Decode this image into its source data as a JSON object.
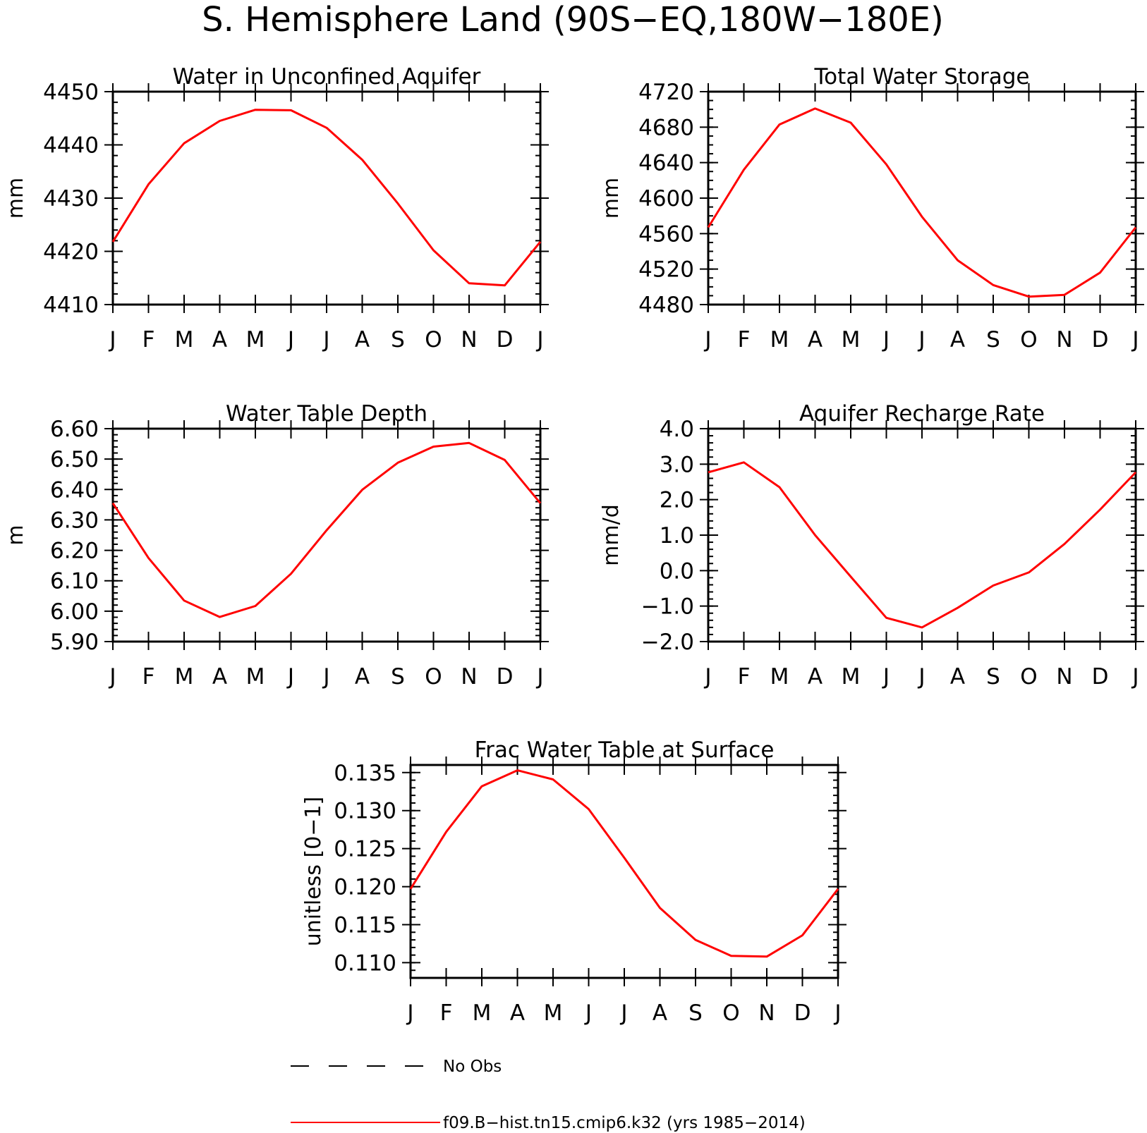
{
  "figure": {
    "title": "S. Hemisphere Land (90S−EQ,180W−180E)"
  },
  "legend": {
    "entries": [
      {
        "label": "No Obs",
        "style": "dashed",
        "color": "#000000"
      },
      {
        "label": "f09.B−hist.tn15.cmip6.k32 (yrs 1985−2014)",
        "style": "solid",
        "color": "#ff0000"
      }
    ]
  },
  "chart_data": [
    {
      "type": "line",
      "title": "Water in Unconfined Aquifer",
      "ylabel": "mm",
      "xlabel": "",
      "categories": [
        "J",
        "F",
        "M",
        "A",
        "M",
        "J",
        "J",
        "A",
        "S",
        "O",
        "N",
        "D",
        "J"
      ],
      "ylim": [
        4410,
        4450
      ],
      "yticks": [
        4410,
        4420,
        4430,
        4440,
        4450
      ],
      "ytick_labels": [
        "4410",
        "4420",
        "4430",
        "4440",
        "4450"
      ],
      "yminor": 2,
      "series": [
        {
          "color": "#ff0000",
          "values": [
            4421.8,
            4432.6,
            4440.3,
            4444.5,
            4446.6,
            4446.5,
            4443.2,
            4437.2,
            4429.0,
            4420.2,
            4414.0,
            4413.6,
            4421.8
          ]
        }
      ]
    },
    {
      "type": "line",
      "title": "Total Water Storage",
      "ylabel": "mm",
      "xlabel": "",
      "categories": [
        "J",
        "F",
        "M",
        "A",
        "M",
        "J",
        "J",
        "A",
        "S",
        "O",
        "N",
        "D",
        "J"
      ],
      "ylim": [
        4480,
        4720
      ],
      "yticks": [
        4480,
        4520,
        4560,
        4600,
        4640,
        4680,
        4720
      ],
      "ytick_labels": [
        "4480",
        "4520",
        "4560",
        "4600",
        "4640",
        "4680",
        "4720"
      ],
      "yminor": 10,
      "series": [
        {
          "color": "#ff0000",
          "values": [
            4567,
            4632,
            4683,
            4701,
            4685,
            4638,
            4579,
            4530,
            4502,
            4489,
            4491,
            4516,
            4567
          ]
        }
      ]
    },
    {
      "type": "line",
      "title": "Water Table Depth",
      "ylabel": "m",
      "xlabel": "",
      "categories": [
        "J",
        "F",
        "M",
        "A",
        "M",
        "J",
        "J",
        "A",
        "S",
        "O",
        "N",
        "D",
        "J"
      ],
      "ylim": [
        5.9,
        6.6
      ],
      "yticks": [
        5.9,
        6.0,
        6.1,
        6.2,
        6.3,
        6.4,
        6.5,
        6.6
      ],
      "ytick_labels": [
        "5.90",
        "6.00",
        "6.10",
        "6.20",
        "6.30",
        "6.40",
        "6.50",
        "6.60"
      ],
      "yminor": 0.02,
      "series": [
        {
          "color": "#ff0000",
          "values": [
            6.355,
            6.175,
            6.035,
            5.981,
            6.017,
            6.123,
            6.266,
            6.399,
            6.488,
            6.541,
            6.553,
            6.497,
            6.355
          ]
        }
      ]
    },
    {
      "type": "line",
      "title": "Aquifer Recharge Rate",
      "ylabel": "mm/d",
      "xlabel": "",
      "categories": [
        "J",
        "F",
        "M",
        "A",
        "M",
        "J",
        "J",
        "A",
        "S",
        "O",
        "N",
        "D",
        "J"
      ],
      "ylim": [
        -2.0,
        4.0
      ],
      "yticks": [
        -2.0,
        -1.0,
        0.0,
        1.0,
        2.0,
        3.0,
        4.0
      ],
      "ytick_labels": [
        "−2.0",
        "−1.0",
        "0.0",
        "1.0",
        "2.0",
        "3.0",
        "4.0"
      ],
      "yminor": 0.2,
      "series": [
        {
          "color": "#ff0000",
          "values": [
            2.77,
            3.05,
            2.35,
            1.0,
            -0.17,
            -1.33,
            -1.6,
            -1.05,
            -0.42,
            -0.05,
            0.75,
            1.72,
            2.77
          ]
        }
      ]
    },
    {
      "type": "line",
      "title": "Frac Water Table at Surface",
      "ylabel": "unitless [0−1]",
      "xlabel": "",
      "categories": [
        "J",
        "F",
        "M",
        "A",
        "M",
        "J",
        "J",
        "A",
        "S",
        "O",
        "N",
        "D",
        "J"
      ],
      "ylim": [
        0.108,
        0.136
      ],
      "yticks": [
        0.11,
        0.115,
        0.12,
        0.125,
        0.13,
        0.135
      ],
      "ytick_labels": [
        "0.110",
        "0.115",
        "0.120",
        "0.125",
        "0.130",
        "0.135"
      ],
      "yminor": 0.001,
      "series": [
        {
          "color": "#ff0000",
          "values": [
            0.1197,
            0.1272,
            0.1332,
            0.1353,
            0.1341,
            0.1302,
            0.1238,
            0.1172,
            0.113,
            0.1109,
            0.1108,
            0.1136,
            0.1197
          ]
        }
      ]
    }
  ]
}
